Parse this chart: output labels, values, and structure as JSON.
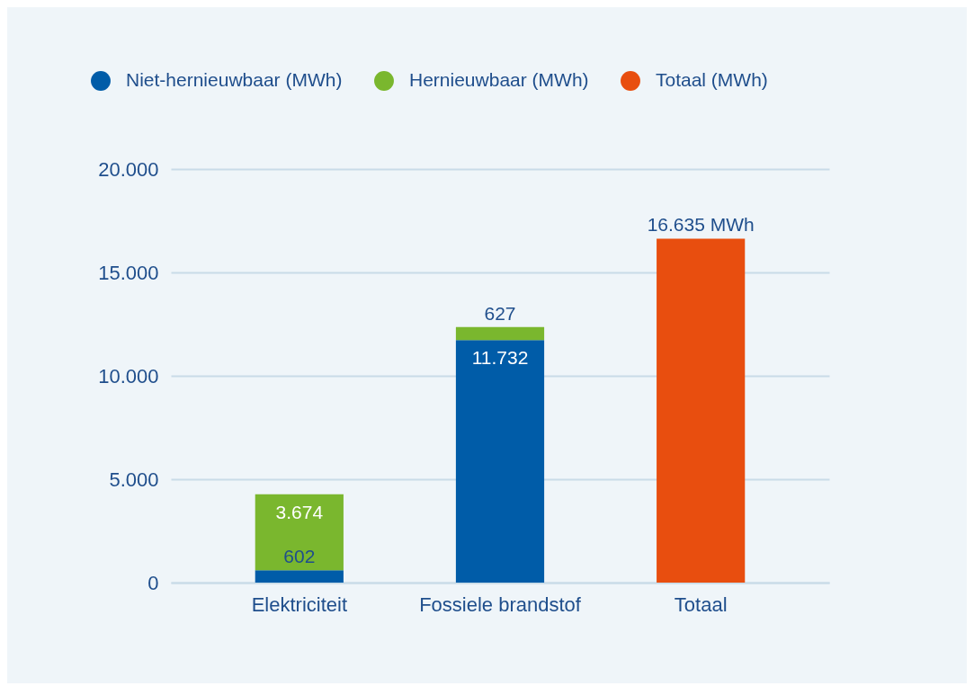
{
  "chart_data": {
    "type": "bar",
    "stacked": true,
    "categories": [
      "Elektriciteit",
      "Fossiele brandstof",
      "Totaal"
    ],
    "series": [
      {
        "name": "Niet-hernieuwbaar (MWh)",
        "color": "#005ca8",
        "values": [
          602,
          11732,
          null
        ],
        "value_labels": [
          "602",
          "11.732",
          null
        ]
      },
      {
        "name": "Hernieuwbaar (MWh)",
        "color": "#7ab72e",
        "values": [
          3674,
          627,
          null
        ],
        "value_labels": [
          "3.674",
          "627",
          null
        ]
      },
      {
        "name": "Totaal (MWh)",
        "color": "#e84e0f",
        "values": [
          null,
          null,
          16635
        ],
        "value_labels": [
          null,
          null,
          "16.635 MWh"
        ]
      }
    ],
    "ylim": [
      0,
      20000
    ],
    "yticks": [
      {
        "value": 0,
        "label": "0"
      },
      {
        "value": 5000,
        "label": "5.000"
      },
      {
        "value": 10000,
        "label": "10.000"
      },
      {
        "value": 15000,
        "label": "15.000"
      },
      {
        "value": 20000,
        "label": "20.000"
      }
    ],
    "grid": "y",
    "legend": "top left"
  }
}
